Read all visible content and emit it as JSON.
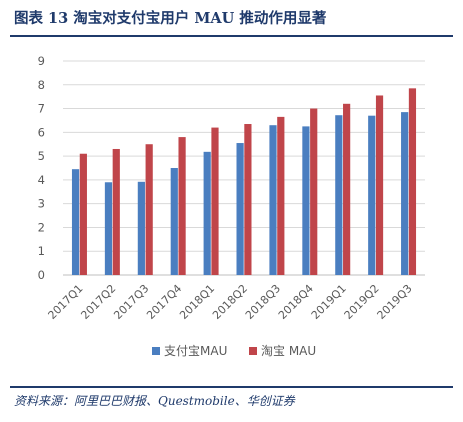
{
  "header": {
    "title": "图表 13   淘宝对支付宝用户 MAU 推动作用显著"
  },
  "footer": {
    "source": "资料来源：阿里巴巴财报、Questmobile、华创证券"
  },
  "colors": {
    "series1": "#4a7ec0",
    "series2": "#c0454a",
    "grid": "#d9d9d9",
    "axis_text": "#595959",
    "title": "#1f3a6b"
  },
  "chart_data": {
    "type": "bar",
    "categories": [
      "2017Q1",
      "2017Q2",
      "2017Q3",
      "2017Q4",
      "2018Q1",
      "2018Q2",
      "2018Q3",
      "2018Q4",
      "2019Q1",
      "2019Q2",
      "2019Q3"
    ],
    "series": [
      {
        "name": "支付宝MAU",
        "values": [
          4.45,
          3.9,
          3.92,
          4.5,
          5.18,
          5.55,
          6.3,
          6.25,
          6.72,
          6.7,
          6.85
        ]
      },
      {
        "name": "淘宝 MAU",
        "values": [
          5.1,
          5.3,
          5.5,
          5.8,
          6.2,
          6.35,
          6.65,
          7.0,
          7.2,
          7.55,
          7.85
        ]
      }
    ],
    "ylim": [
      0,
      9
    ],
    "yticks": [
      "0",
      "1",
      "2",
      "3",
      "4",
      "5",
      "6",
      "7",
      "8",
      "9"
    ],
    "grid": true,
    "legend_position": "bottom"
  }
}
